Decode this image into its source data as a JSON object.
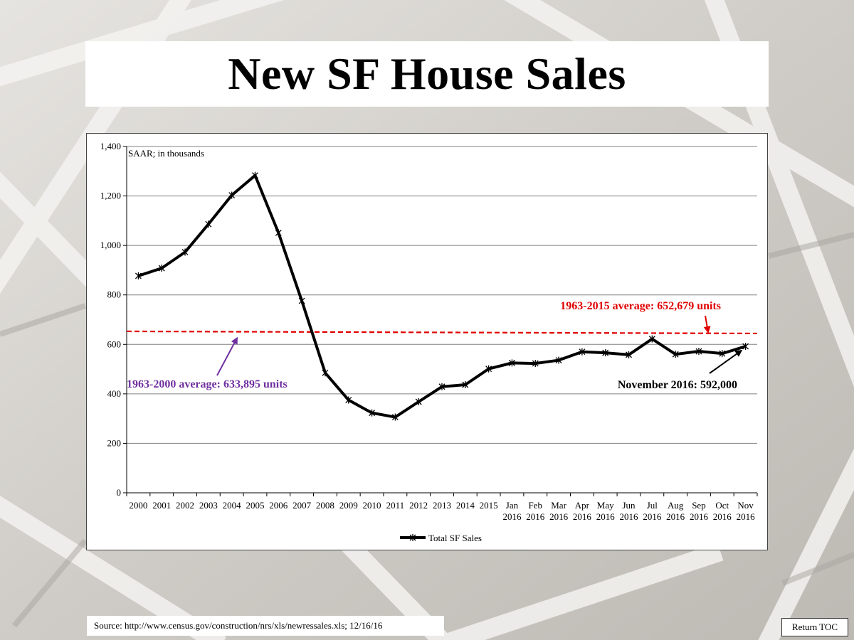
{
  "slide": {
    "title": "New SF House Sales",
    "source": "Source: http://www.census.gov/construction/nrs/xls/newressales.xls; 12/16/16",
    "return_toc_label": "Return TOC"
  },
  "chart_data": {
    "type": "line",
    "units_note": "SAAR; in thousands",
    "categories": [
      [
        "2000"
      ],
      [
        "2001"
      ],
      [
        "2002"
      ],
      [
        "2003"
      ],
      [
        "2004"
      ],
      [
        "2005"
      ],
      [
        "2006"
      ],
      [
        "2007"
      ],
      [
        "2008"
      ],
      [
        "2009"
      ],
      [
        "2010"
      ],
      [
        "2011"
      ],
      [
        "2012"
      ],
      [
        "2013"
      ],
      [
        "2014"
      ],
      [
        "2015"
      ],
      [
        "Jan",
        "2016"
      ],
      [
        "Feb",
        "2016"
      ],
      [
        "Mar",
        "2016"
      ],
      [
        "Apr",
        "2016"
      ],
      [
        "May",
        "2016"
      ],
      [
        "Jun",
        "2016"
      ],
      [
        "Jul",
        "2016"
      ],
      [
        "Aug",
        "2016"
      ],
      [
        "Sep",
        "2016"
      ],
      [
        "Oct",
        "2016"
      ],
      [
        "Nov",
        "2016"
      ]
    ],
    "series": [
      {
        "name": "Total SF Sales",
        "color": "#000000",
        "marker": "star",
        "values": [
          877,
          908,
          973,
          1086,
          1203,
          1283,
          1051,
          776,
          485,
          375,
          323,
          306,
          368,
          429,
          437,
          501,
          525,
          523,
          536,
          570,
          566,
          558,
          622,
          560,
          572,
          563,
          592
        ]
      }
    ],
    "ylim": [
      0,
      1400
    ],
    "yticks": [
      0,
      200,
      400,
      600,
      800,
      1000,
      1200,
      1400
    ],
    "ytick_labels": [
      "0",
      "200",
      "400",
      "600",
      "800",
      "1,000",
      "1,200",
      "1,400"
    ],
    "grid": "horizontal",
    "legend_position": "bottom",
    "reference_lines": [
      {
        "label": "1963-2015 average: 652,679 units",
        "value": 652.679,
        "color": "#e00000"
      },
      {
        "label": "1963-2000 average: 633,895 units",
        "value": 633.895,
        "color": "#7030a0"
      }
    ],
    "callouts": [
      {
        "label": "November 2016: 592,000",
        "color": "#000000"
      }
    ]
  }
}
